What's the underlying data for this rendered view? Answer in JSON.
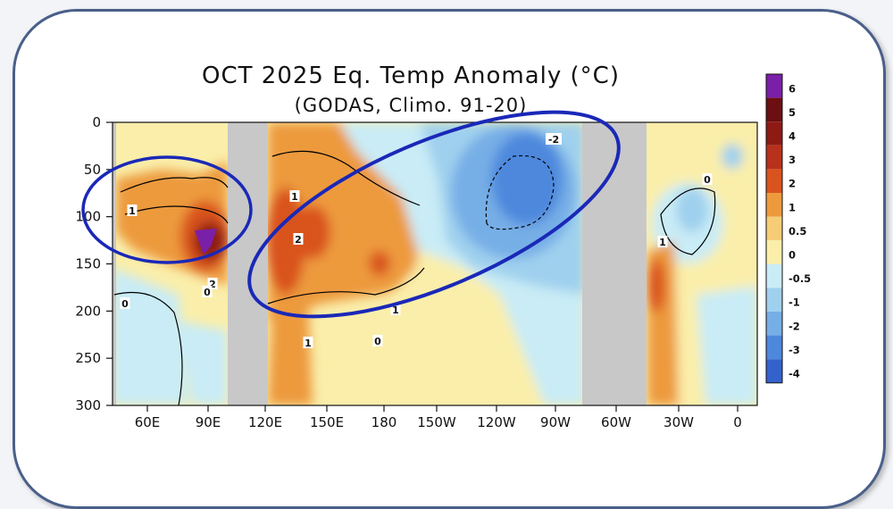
{
  "chart_data": {
    "type": "heatmap",
    "title": "OCT 2025 Eq. Temp Anomaly (°C)",
    "subtitle": "(GODAS,  Climo. 91-20)",
    "x_tick_labels": [
      "60E",
      "90E",
      "120E",
      "150E",
      "180",
      "150W",
      "120W",
      "90W",
      "60W",
      "30W",
      "0"
    ],
    "y_tick_labels": [
      "0",
      "50",
      "100",
      "150",
      "200",
      "250",
      "300"
    ],
    "ylim": [
      300,
      0
    ],
    "colorbar": {
      "levels": [
        "6",
        "5",
        "4",
        "3",
        "2",
        "1",
        "0.5",
        "0",
        "-0.5",
        "-1",
        "-2",
        "-3",
        "-4"
      ],
      "colors": [
        "#7a1fa8",
        "#6b0f12",
        "#8e1a14",
        "#b8311c",
        "#d9531f",
        "#ed9a3c",
        "#f6cd76",
        "#faeeaa",
        "#c9ecf6",
        "#9fd0ee",
        "#76aee6",
        "#4d88dd",
        "#3462cc"
      ]
    },
    "contour_labels": [
      "1",
      "2",
      "0",
      "1",
      "2",
      "0",
      "1",
      "0",
      "1",
      "-2",
      "0",
      "1"
    ],
    "annotations": [
      {
        "type": "ellipse",
        "color": "#1a28b8",
        "region": "Indian Ocean 50E-110E"
      },
      {
        "type": "ellipse",
        "color": "#1a28b8",
        "region": "Pacific 120E-100W"
      }
    ]
  }
}
